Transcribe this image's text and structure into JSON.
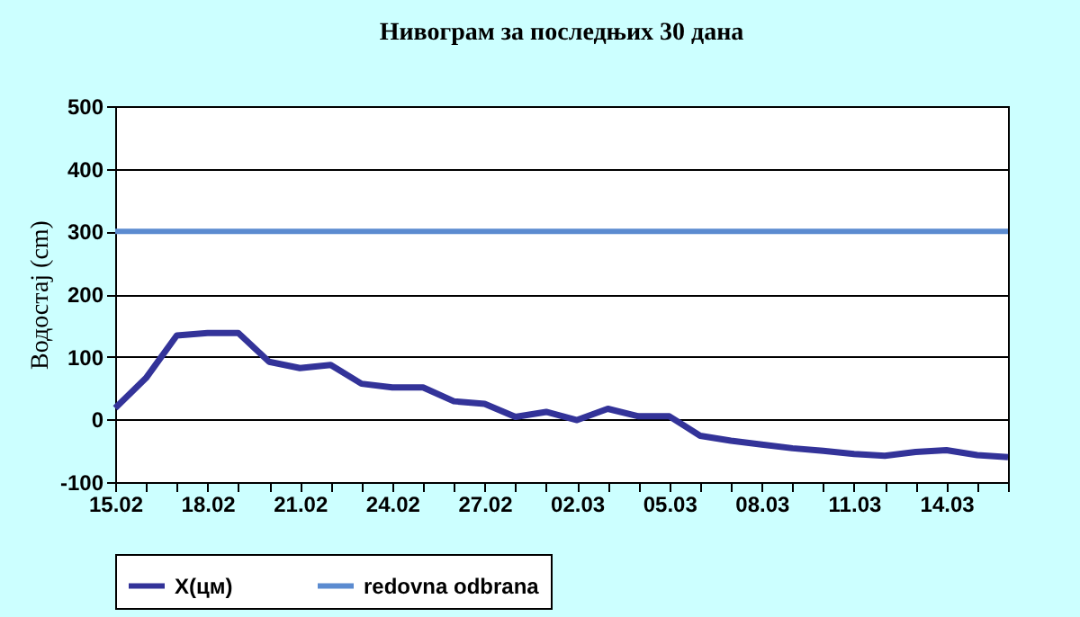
{
  "chart_data": {
    "type": "line",
    "title": "Нивограм за последњих 30 дана",
    "ylabel": "Водостај (cm)",
    "categories": [
      "15.02",
      null,
      null,
      "18.02",
      null,
      null,
      "21.02",
      null,
      null,
      "24.02",
      null,
      null,
      "27.02",
      null,
      null,
      "02.03",
      null,
      null,
      "05.03",
      null,
      null,
      "08.03",
      null,
      null,
      "11.03",
      null,
      null,
      "14.03",
      null,
      null
    ],
    "series": [
      {
        "name": "X(цм)",
        "color": "#333399",
        "values": [
          18,
          66,
          134,
          138,
          138,
          92,
          82,
          87,
          57,
          51,
          51,
          29,
          25,
          4,
          12,
          -1,
          17,
          5,
          5,
          -26,
          -34,
          -40,
          -46,
          -50,
          -55,
          -58,
          -52,
          -49,
          -57,
          -60
        ]
      }
    ],
    "ref_lines": [
      {
        "axis": "y",
        "value": 300,
        "label": "redovna odbrana",
        "color": "#5b8bd0"
      }
    ],
    "ylim": [
      -100,
      500
    ],
    "yticks": [
      -100,
      0,
      100,
      200,
      300,
      400,
      500
    ],
    "grid": "y",
    "legend": "bottom",
    "marker": "none",
    "line_style": "solid"
  }
}
